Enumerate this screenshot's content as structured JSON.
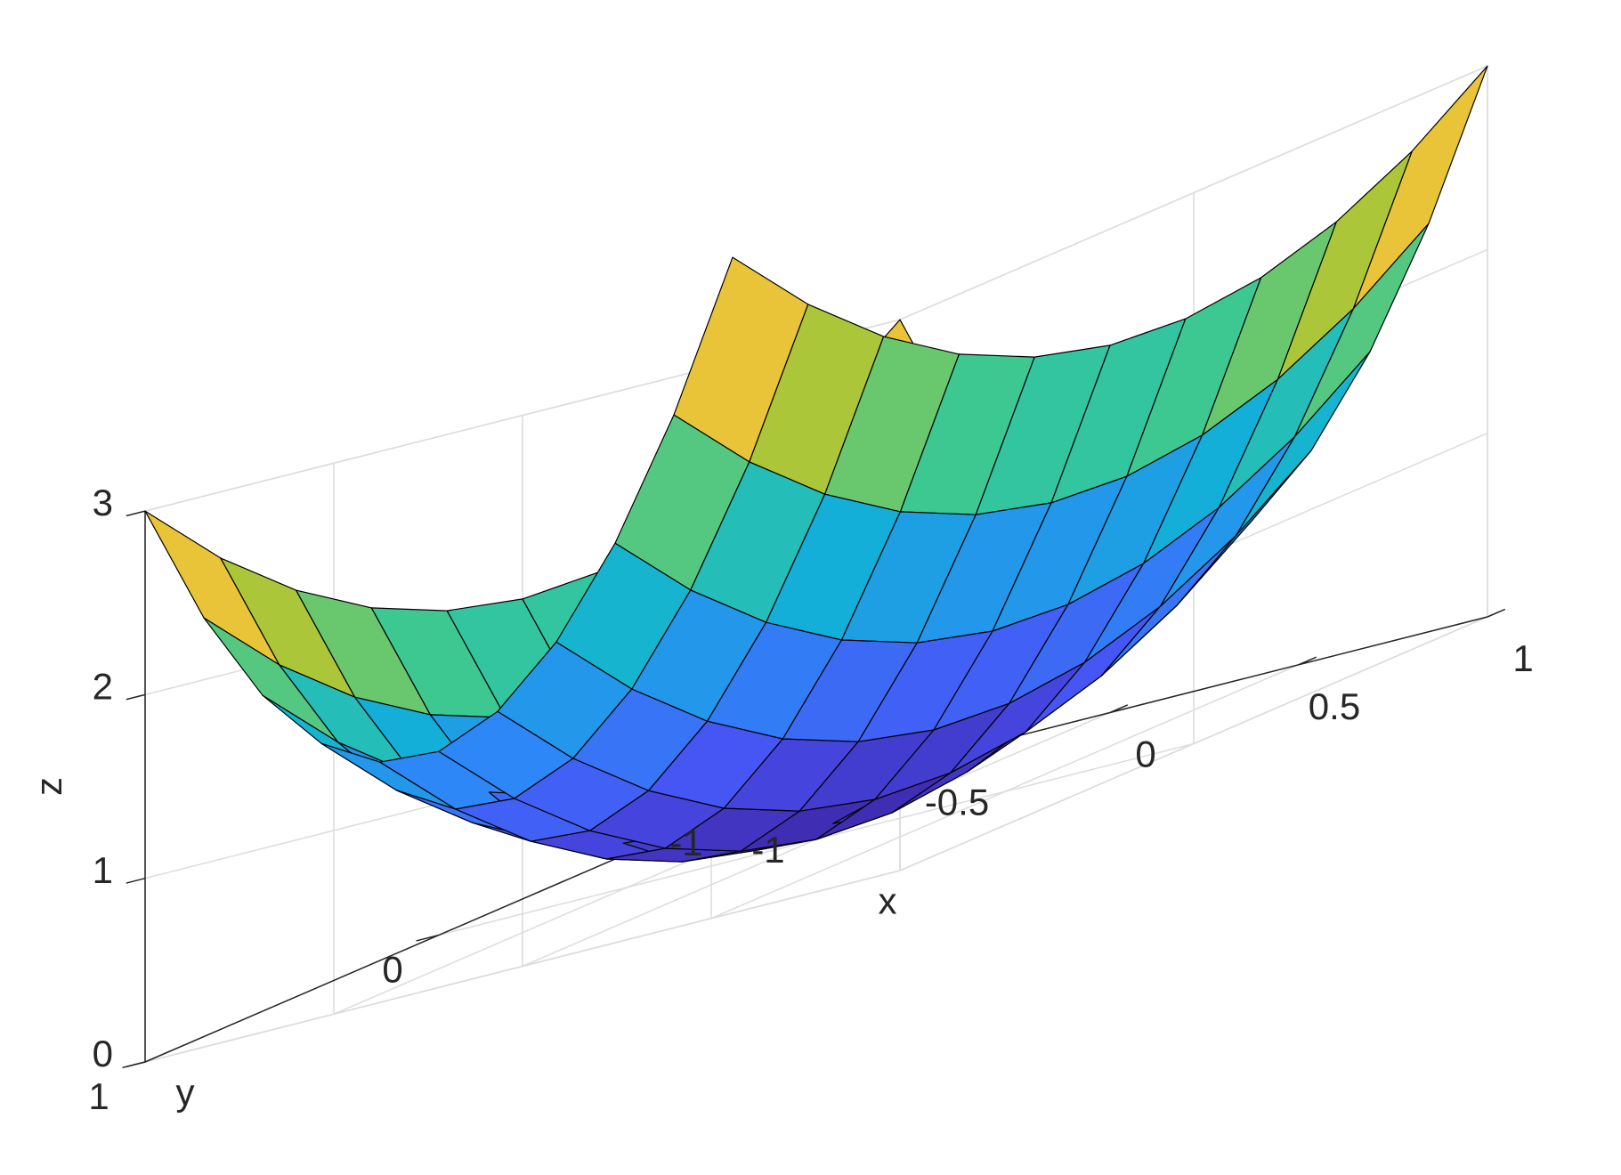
{
  "chart_data": {
    "type": "surface",
    "x_label": "x",
    "y_label": "y",
    "z_label": "z",
    "x": [
      -1,
      -0.8,
      -0.6,
      -0.4,
      -0.2,
      0,
      0.2,
      0.4,
      0.6,
      0.8,
      1
    ],
    "y": [
      -1,
      -0.8,
      -0.6,
      -0.4,
      -0.2,
      0,
      0.2,
      0.4,
      0.6,
      0.8,
      1
    ],
    "z": [
      [
        3,
        2.64,
        2.36,
        2.16,
        2.04,
        2,
        2.04,
        2.16,
        2.36,
        2.64,
        3
      ],
      [
        2.28,
        1.92,
        1.64,
        1.44,
        1.32,
        1.28,
        1.32,
        1.44,
        1.64,
        1.92,
        2.28
      ],
      [
        1.72,
        1.36,
        1.08,
        0.88,
        0.76,
        0.72,
        0.76,
        0.88,
        1.08,
        1.36,
        1.72
      ],
      [
        1.32,
        0.96,
        0.68,
        0.48,
        0.36,
        0.32,
        0.36,
        0.48,
        0.68,
        0.96,
        1.32
      ],
      [
        1.08,
        0.72,
        0.44,
        0.24,
        0.12,
        0.08,
        0.12,
        0.24,
        0.44,
        0.72,
        1.08
      ],
      [
        1,
        0.64,
        0.36,
        0.16,
        0.04,
        0,
        0.04,
        0.16,
        0.36,
        0.64,
        1
      ],
      [
        1.08,
        0.72,
        0.44,
        0.24,
        0.12,
        0.08,
        0.12,
        0.24,
        0.44,
        0.72,
        1.08
      ],
      [
        1.32,
        0.96,
        0.68,
        0.48,
        0.36,
        0.32,
        0.36,
        0.48,
        0.68,
        0.96,
        1.32
      ],
      [
        1.72,
        1.36,
        1.08,
        0.88,
        0.76,
        0.72,
        0.76,
        0.88,
        1.08,
        1.36,
        1.72
      ],
      [
        2.28,
        1.92,
        1.64,
        1.44,
        1.32,
        1.28,
        1.32,
        1.44,
        1.64,
        1.92,
        2.28
      ],
      [
        3,
        2.64,
        2.36,
        2.16,
        2.04,
        2,
        2.04,
        2.16,
        2.36,
        2.64,
        3
      ]
    ],
    "xlim": [
      -1,
      1
    ],
    "ylim": [
      -1,
      1
    ],
    "zlim": [
      0,
      3
    ],
    "xticks": [
      -1,
      -0.5,
      0,
      0.5,
      1
    ],
    "yticks": [
      -1,
      0,
      1
    ],
    "zticks": [
      0,
      1,
      2,
      3
    ],
    "grid": true,
    "colormap": "parula"
  }
}
